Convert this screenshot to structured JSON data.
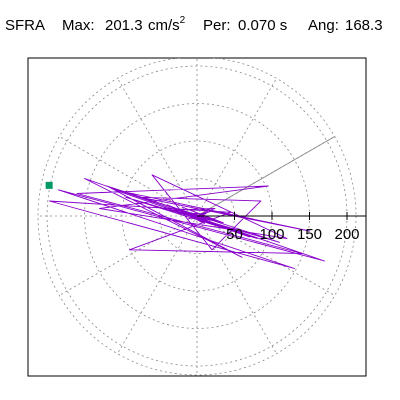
{
  "header": {
    "station": "SFRA",
    "max_label": "Max:",
    "max_value": "201.3",
    "max_unit": "cm/s",
    "max_unit_exp": "2",
    "period_label": "Per:",
    "period_value": "0.070 s",
    "angle_label": "Ang:",
    "angle_value": "168.3"
  },
  "chart_data": {
    "type": "line",
    "title": "",
    "coordinate_system": "polar",
    "radial_ticks": [
      50,
      100,
      150,
      200
    ],
    "radial_tick_labels": [
      "50",
      "100",
      "150",
      "200"
    ],
    "radial_limit": 212,
    "spoke_step_deg": 30,
    "grid": true,
    "peak": {
      "angle_deg": 168.3,
      "radius": 201.3
    },
    "reference_line_angle_deg": 30,
    "colors": {
      "orbit": "#8800cc",
      "grid": "#888888",
      "axis": "#000000",
      "peak_marker": "#009966",
      "frame": "#000000"
    },
    "series": [
      {
        "x": [
          0,
          18,
          -12,
          24,
          -30,
          35,
          -20,
          28,
          -40,
          55,
          -62,
          80,
          -95,
          110,
          -120,
          60,
          -150,
          170,
          -185,
          130,
          -197,
          45,
          -90,
          140,
          -160,
          95,
          -130,
          120,
          -60,
          20,
          85,
          -75,
          150,
          -110,
          70,
          -40,
          10,
          -15,
          30,
          -25,
          12,
          -8,
          5,
          0
        ],
        "y": [
          0,
          6,
          -4,
          10,
          8,
          -9,
          12,
          -7,
          14,
          -22,
          18,
          -30,
          25,
          -35,
          40,
          -55,
          50,
          -60,
          35,
          -70,
          20,
          5,
          -45,
          -50,
          30,
          40,
          10,
          -30,
          55,
          -45,
          20,
          25,
          -20,
          35,
          -28,
          15,
          -10,
          6,
          -8,
          4,
          3,
          -2,
          1,
          0
        ]
      }
    ]
  }
}
